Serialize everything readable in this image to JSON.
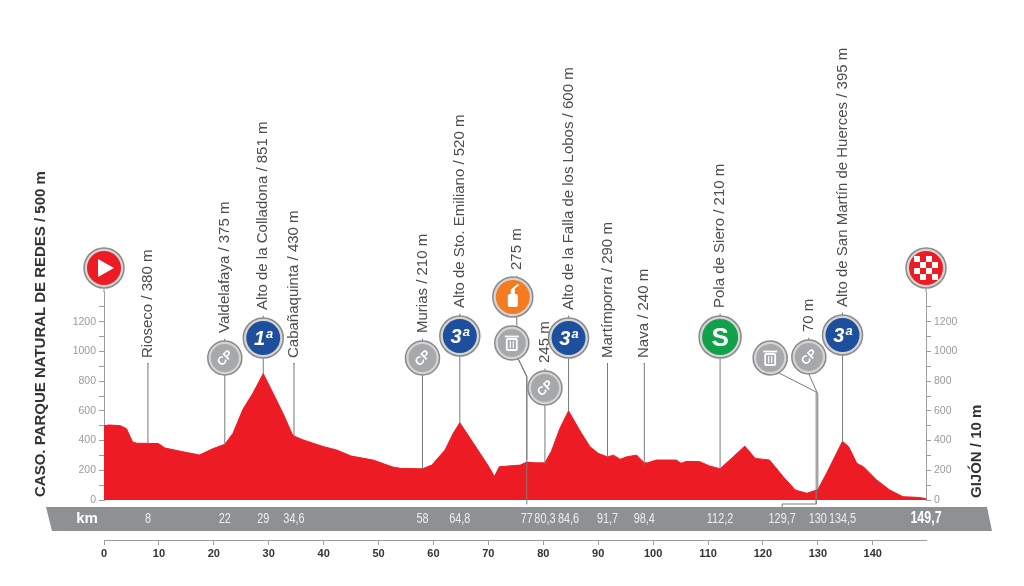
{
  "chart_data": {
    "type": "area",
    "ylabel": "CASO. PARQUE NATURAL DE REDES / 500 m",
    "y2label": "GIJÓN / 10 m",
    "x2label": "km",
    "color": "#ed1c24",
    "x": [
      0,
      1,
      3,
      4.1,
      5.2,
      6,
      9.9,
      11.1,
      15,
      17.4,
      19.8,
      22,
      23.5,
      25.3,
      27.1,
      29,
      30.8,
      32.6,
      34.2,
      34.6,
      36.3,
      39.9,
      42.4,
      45,
      49,
      52.6,
      54,
      58,
      59.7,
      62.1,
      63.6,
      64.8,
      67.3,
      70,
      71.1,
      72,
      75.8,
      77,
      78.5,
      80.3,
      81.5,
      83,
      84.6,
      86.6,
      88.5,
      90,
      91.7,
      92.8,
      94,
      95.2,
      97,
      98.4,
      99,
      100.6,
      104.2,
      105.1,
      106.1,
      108.5,
      110.3,
      112.2,
      114.6,
      116.7,
      118.6,
      121.2,
      123.7,
      125.9,
      128,
      130,
      131.6,
      133.4,
      134.5,
      135.6,
      137.1,
      138.3,
      140.7,
      143.1,
      145.5,
      148,
      149.7
    ],
    "values": [
      500,
      505,
      500,
      480,
      390,
      382,
      380,
      350,
      320,
      303,
      345,
      375,
      450,
      610,
      718,
      851,
      718,
      583,
      450,
      430,
      404,
      360,
      336,
      296,
      269,
      222,
      213,
      210,
      235,
      336,
      449,
      520,
      381,
      229,
      158,
      224,
      235,
      255,
      250,
      250,
      330,
      480,
      600,
      471,
      359,
      314,
      290,
      302,
      274,
      291,
      302,
      250,
      250,
      269,
      269,
      247,
      260,
      258,
      229,
      210,
      291,
      363,
      280,
      269,
      157,
      67,
      45,
      70,
      180,
      314,
      395,
      359,
      247,
      224,
      135,
      67,
      22,
      18,
      10
    ],
    "xlim": [
      0,
      149.7
    ],
    "xticks": [
      0,
      10,
      20,
      30,
      40,
      50,
      60,
      70,
      80,
      90,
      100,
      110,
      120,
      130,
      140
    ],
    "x2lim": [
      0,
      149.7
    ],
    "x2ticks": [
      8,
      22,
      29,
      {
        "value": 34.6,
        "label": "34,6"
      },
      58,
      {
        "value": 64.8,
        "label": "64,8"
      },
      77,
      {
        "value": 80.3,
        "label": "80,3"
      },
      {
        "value": 84.6,
        "label": "84,6"
      },
      {
        "value": 91.7,
        "label": "91,7"
      },
      {
        "value": 98.4,
        "label": "98,4"
      },
      {
        "value": 112.2,
        "label": "112,2"
      },
      130,
      {
        "value": 134.5,
        "label": "134,5"
      },
      {
        "value": 149.7,
        "label": "149,7"
      }
    ],
    "ylim": [
      0,
      1400
    ],
    "yticks": [
      0,
      {
        "value": 100,
        "label": null
      },
      200,
      {
        "value": 300,
        "label": null
      },
      400,
      {
        "value": 500,
        "label": null
      },
      600,
      {
        "value": 700,
        "label": null
      },
      800,
      {
        "value": 900,
        "label": null
      },
      1000,
      {
        "value": 1100,
        "label": null
      },
      1200,
      {
        "value": 1300,
        "label": null
      }
    ],
    "y2lim": [
      0,
      1400
    ],
    "y2ticks": [
      0,
      {
        "value": 100,
        "label": null
      },
      200,
      {
        "value": 300,
        "label": null
      },
      400,
      {
        "value": 500,
        "label": null
      },
      600,
      {
        "value": 700,
        "label": null
      },
      800,
      {
        "value": 900,
        "label": null
      },
      1000,
      {
        "value": 1100,
        "label": null
      },
      1200,
      {
        "value": 1300,
        "label": null
      }
    ],
    "annotations": [
      {
        "text": "Rioseco / 380 m",
        "x": 8,
        "y": 380
      },
      {
        "text": "CP",
        "x": 22,
        "y": 375
      },
      {
        "text": "Valdelafaya / 375 m",
        "x": 22,
        "y": 375
      },
      {
        "text": "1ª",
        "x": 29,
        "y": 851
      },
      {
        "text": "Alto de la Colladona / 851 m",
        "x": 29,
        "y": 851
      },
      {
        "text": "Cabañaquinta / 430 m",
        "x": 34.6,
        "y": 430
      },
      {
        "text": "CP",
        "x": 58,
        "y": 210
      },
      {
        "text": "Murias / 210 m",
        "x": 58,
        "y": 210
      },
      {
        "text": "3ª",
        "x": 64.8,
        "y": 520
      },
      {
        "text": "Alto de Sto. Emiliano / 520 m",
        "x": 64.8,
        "y": 520
      },
      {
        "text": "275 m",
        "x": 77,
        "y": 275
      },
      {
        "text": "CP",
        "x": 80.3,
        "y": 245
      },
      {
        "text": "245 m",
        "x": 80.3,
        "y": 245
      },
      {
        "text": "3ª",
        "x": 84.6,
        "y": 600
      },
      {
        "text": "Alto de la Falla de los Lobos / 600 m",
        "x": 84.6,
        "y": 600
      },
      {
        "text": "Martímporra / 290 m",
        "x": 91.7,
        "y": 290
      },
      {
        "text": "Nava / 240 m",
        "x": 98.4,
        "y": 240
      },
      {
        "text": "S",
        "x": 112.2,
        "y": 210
      },
      {
        "text": "Pola de Siero / 210 m",
        "x": 112.2,
        "y": 210
      },
      {
        "text": "CP",
        "x": 130,
        "y": 70
      },
      {
        "text": "70 m",
        "x": 130,
        "y": 70
      },
      {
        "text": "3ª",
        "x": 134.5,
        "y": 395
      },
      {
        "text": "Alto de San Martín de Huerces / 395 m",
        "x": 134.5,
        "y": 395
      },
      {
        "text": "129,7",
        "x": 129.7,
        "y": 65
      }
    ]
  }
}
